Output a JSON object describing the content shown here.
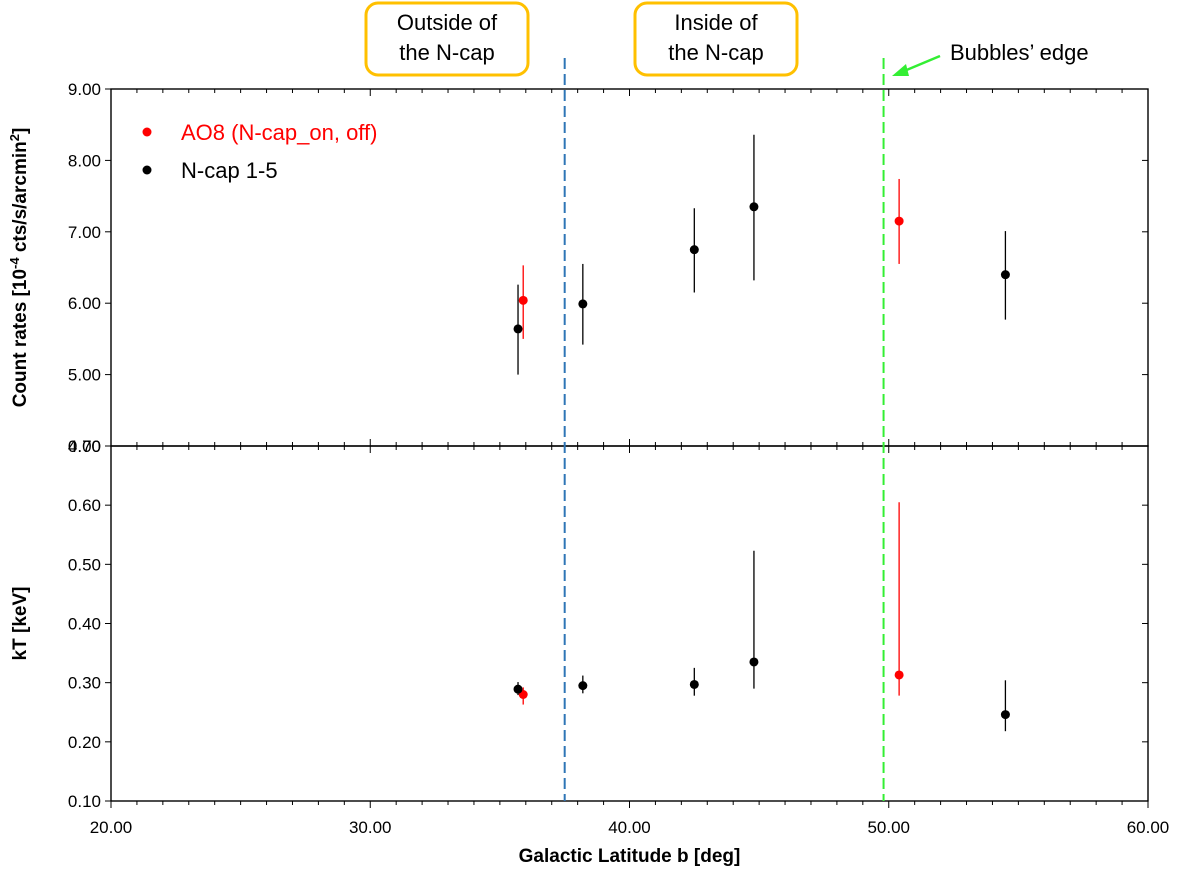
{
  "chart_data": {
    "type": "scatter",
    "xlabel": "Galactic Latitude b [deg]",
    "xlim": [
      20,
      60
    ],
    "x_ticks": [
      "20.00",
      "30.00",
      "40.00",
      "50.00",
      "60.00"
    ],
    "colors": {
      "ao8": "#ff0000",
      "ncap": "#000000",
      "region_line": "#2e75b6",
      "bubble_line": "#33ee33",
      "callout_border": "#ffc000"
    },
    "legend": [
      {
        "name": "AO8 (N-cap_on, off)",
        "color": "#ff0000"
      },
      {
        "name": "N-cap 1-5",
        "color": "#000000"
      }
    ],
    "legend_placement": "top-left",
    "panels": [
      {
        "id": "count_rates",
        "ylabel_main": "Count rates [10",
        "ylabel_sup1": "-4",
        "ylabel_mid": " cts/s/arcmin",
        "ylabel_sup2": "2",
        "ylabel_end": "]",
        "ylim": [
          4,
          9
        ],
        "y_ticks": [
          "4.00",
          "5.00",
          "6.00",
          "7.00",
          "8.00",
          "9.00"
        ],
        "series": [
          {
            "name": "AO8 (N-cap_on, off)",
            "color": "#ff0000",
            "points": [
              {
                "x": 35.9,
                "y": 6.04,
                "lo": 5.5,
                "hi": 6.53
              },
              {
                "x": 50.4,
                "y": 7.15,
                "lo": 6.55,
                "hi": 7.74
              }
            ]
          },
          {
            "name": "N-cap 1-5",
            "color": "#000000",
            "points": [
              {
                "x": 35.7,
                "y": 5.64,
                "lo": 5.0,
                "hi": 6.26
              },
              {
                "x": 38.2,
                "y": 5.99,
                "lo": 5.42,
                "hi": 6.55
              },
              {
                "x": 42.5,
                "y": 6.75,
                "lo": 6.15,
                "hi": 7.33
              },
              {
                "x": 44.8,
                "y": 7.35,
                "lo": 6.32,
                "hi": 8.36
              },
              {
                "x": 54.5,
                "y": 6.4,
                "lo": 5.77,
                "hi": 7.01
              }
            ]
          }
        ]
      },
      {
        "id": "kT",
        "ylabel": "kT [keV]",
        "ylim": [
          0.1,
          0.7
        ],
        "y_ticks": [
          "0.10",
          "0.20",
          "0.30",
          "0.40",
          "0.50",
          "0.60",
          "0.70"
        ],
        "series": [
          {
            "name": "AO8 (N-cap_on, off)",
            "color": "#ff0000",
            "points": [
              {
                "x": 35.9,
                "y": 0.28,
                "lo": 0.263,
                "hi": 0.292
              },
              {
                "x": 50.4,
                "y": 0.313,
                "lo": 0.278,
                "hi": 0.605
              }
            ]
          },
          {
            "name": "N-cap 1-5",
            "color": "#000000",
            "points": [
              {
                "x": 35.7,
                "y": 0.289,
                "lo": 0.279,
                "hi": 0.301
              },
              {
                "x": 38.2,
                "y": 0.295,
                "lo": 0.282,
                "hi": 0.312
              },
              {
                "x": 42.5,
                "y": 0.297,
                "lo": 0.278,
                "hi": 0.325
              },
              {
                "x": 44.8,
                "y": 0.335,
                "lo": 0.29,
                "hi": 0.523
              },
              {
                "x": 54.5,
                "y": 0.246,
                "lo": 0.218,
                "hi": 0.304
              }
            ]
          }
        ]
      }
    ],
    "vertical_lines": [
      {
        "id": "ncap-boundary",
        "x": 37.5,
        "color": "#2e75b6"
      },
      {
        "id": "bubbles-edge",
        "x": 49.8,
        "color": "#33ee33"
      }
    ],
    "annotations": {
      "outside": [
        "Outside of",
        "the N-cap"
      ],
      "inside": [
        "Inside of",
        "the N-cap"
      ],
      "bubbles_edge": "Bubbles’ edge"
    }
  }
}
